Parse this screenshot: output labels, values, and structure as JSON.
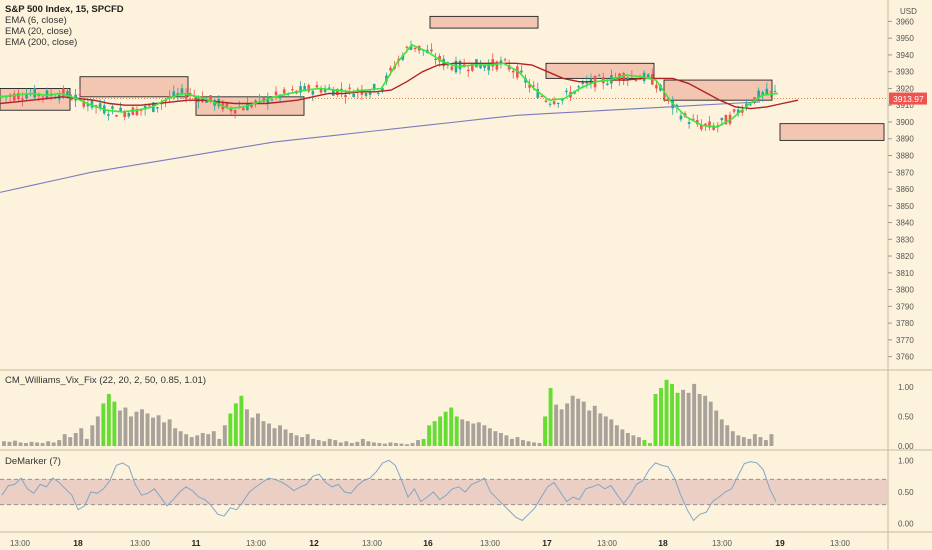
{
  "header": {
    "title": "S&P 500 Index, 15, SPCFD",
    "indicators": [
      "EMA (6, close)",
      "EMA (20, close)",
      "EMA (200, close)"
    ],
    "currency": "USD",
    "last_price": "3913.97"
  },
  "pane_vix": {
    "title": "CM_Williams_Vix_Fix (22, 20, 2, 50, 0.85, 1.01)",
    "ticks": [
      "1.00",
      "0.50",
      "0.00"
    ]
  },
  "pane_dem": {
    "title": "DeMarker (7)",
    "ticks": [
      "1.00",
      "0.50",
      "0.00"
    ]
  },
  "time_axis": [
    "13:00",
    "18",
    "13:00",
    "11",
    "13:00",
    "12",
    "13:00",
    "16",
    "13:00",
    "17",
    "13:00",
    "18",
    "13:00",
    "19",
    "13:00"
  ],
  "colors": {
    "background": "#fdf2dc",
    "candle_up": "#26a69a",
    "candle_down": "#ef5350",
    "ema_fast": "#38e838",
    "ema_mid": "#b22222",
    "ema_slow": "#7b7bbd",
    "vix_bar": "#a8a29a",
    "vix_spike": "#66dd33",
    "zone_fill": "#f3c6b2",
    "demarker_line": "#7fa7c9",
    "demarker_band": "#e8c9c0"
  },
  "chart_data": [
    {
      "type": "candlestick",
      "title": "S&P 500 Index, 15, SPCFD",
      "x": [
        "13:00",
        "18",
        "13:00",
        "11",
        "13:00",
        "12",
        "13:00",
        "16",
        "13:00",
        "17",
        "13:00",
        "18",
        "13:00",
        "19",
        "13:00"
      ],
      "y_ticks": [
        3760,
        3770,
        3780,
        3790,
        3800,
        3810,
        3820,
        3830,
        3840,
        3850,
        3860,
        3870,
        3880,
        3890,
        3900,
        3910,
        3920,
        3930,
        3940,
        3950,
        3960
      ],
      "ylim": [
        3755,
        3968
      ],
      "last_price": 3913.97,
      "ema6": [
        3915,
        3916,
        3917,
        3916,
        3917,
        3914,
        3910,
        3907,
        3906,
        3907,
        3909,
        3914,
        3917,
        3915,
        3912,
        3908,
        3909,
        3912,
        3915,
        3917,
        3919,
        3920,
        3919,
        3918,
        3919,
        3920,
        3935,
        3946,
        3942,
        3936,
        3933,
        3934,
        3934,
        3935,
        3930,
        3920,
        3913,
        3914,
        3920,
        3924,
        3925,
        3928,
        3927,
        3925,
        3912,
        3903,
        3898,
        3897,
        3902,
        3910,
        3916,
        3917
      ],
      "ema20": [
        3911,
        3912,
        3913,
        3914,
        3915,
        3914,
        3913,
        3911,
        3910,
        3910,
        3911,
        3912,
        3913,
        3913,
        3912,
        3911,
        3911,
        3911,
        3912,
        3913,
        3915,
        3917,
        3917,
        3918,
        3918,
        3919,
        3924,
        3930,
        3934,
        3935,
        3935,
        3935,
        3935,
        3935,
        3934,
        3930,
        3926,
        3924,
        3924,
        3925,
        3925,
        3926,
        3926,
        3926,
        3923,
        3918,
        3913,
        3909,
        3908,
        3909,
        3911,
        3913
      ],
      "ema200": [
        3858,
        3862,
        3866,
        3870,
        3873,
        3876,
        3879,
        3882,
        3885,
        3888,
        3890,
        3892,
        3894,
        3896,
        3898,
        3900,
        3902,
        3904,
        3905,
        3906,
        3907,
        3908,
        3909,
        3910,
        3911,
        3912
      ]
    },
    {
      "type": "bar",
      "title": "CM_Williams_Vix_Fix (22, 20, 2, 50, 0.85, 1.01)",
      "ylim": [
        0,
        1.15
      ],
      "y_ticks": [
        0,
        0.5,
        1
      ],
      "values": [
        0.08,
        0.07,
        0.09,
        0.06,
        0.05,
        0.07,
        0.06,
        0.05,
        0.08,
        0.06,
        0.1,
        0.2,
        0.15,
        0.22,
        0.3,
        0.12,
        0.35,
        0.5,
        0.72,
        0.88,
        0.75,
        0.6,
        0.65,
        0.5,
        0.58,
        0.62,
        0.55,
        0.48,
        0.52,
        0.4,
        0.45,
        0.3,
        0.25,
        0.2,
        0.15,
        0.18,
        0.22,
        0.2,
        0.25,
        0.12,
        0.35,
        0.55,
        0.72,
        0.85,
        0.62,
        0.48,
        0.55,
        0.42,
        0.38,
        0.3,
        0.35,
        0.28,
        0.22,
        0.18,
        0.15,
        0.2,
        0.12,
        0.1,
        0.08,
        0.12,
        0.1,
        0.06,
        0.08,
        0.05,
        0.07,
        0.12,
        0.08,
        0.06,
        0.05,
        0.04,
        0.06,
        0.05,
        0.04,
        0.03,
        0.05,
        0.1,
        0.12,
        0.35,
        0.42,
        0.5,
        0.58,
        0.65,
        0.5,
        0.45,
        0.42,
        0.38,
        0.4,
        0.35,
        0.3,
        0.25,
        0.22,
        0.18,
        0.12,
        0.15,
        0.1,
        0.08,
        0.06,
        0.05,
        0.5,
        0.98,
        0.7,
        0.62,
        0.72,
        0.85,
        0.8,
        0.75,
        0.6,
        0.68,
        0.55,
        0.5,
        0.45,
        0.35,
        0.28,
        0.22,
        0.18,
        0.15,
        0.1,
        0.05,
        0.88,
        0.98,
        1.12,
        1.05,
        0.9,
        0.95,
        0.9,
        1.05,
        0.88,
        0.85,
        0.75,
        0.6,
        0.45,
        0.35,
        0.25,
        0.18,
        0.15,
        0.12,
        0.2,
        0.15,
        0.1,
        0.2
      ],
      "highlighted": [
        18,
        19,
        20,
        41,
        42,
        43,
        76,
        77,
        78,
        79,
        80,
        81,
        82,
        98,
        99,
        116,
        117,
        118,
        119,
        120,
        121,
        122
      ]
    },
    {
      "type": "line",
      "title": "DeMarker (7)",
      "ylim": [
        -0.1,
        1.1
      ],
      "y_ticks": [
        0,
        0.5,
        1
      ],
      "band": [
        0.3,
        0.7
      ],
      "values": [
        0.45,
        0.6,
        0.62,
        0.72,
        0.55,
        0.48,
        0.62,
        0.58,
        0.72,
        0.65,
        0.55,
        0.45,
        0.22,
        0.28,
        0.5,
        0.48,
        0.55,
        0.68,
        0.92,
        0.96,
        0.9,
        0.62,
        0.45,
        0.48,
        0.55,
        0.42,
        0.28,
        0.38,
        0.5,
        0.58,
        0.52,
        0.42,
        0.38,
        0.28,
        0.15,
        0.12,
        0.25,
        0.22,
        0.35,
        0.5,
        0.58,
        0.65,
        0.72,
        0.7,
        0.66,
        0.6,
        0.52,
        0.58,
        0.62,
        0.75,
        0.78,
        0.65,
        0.58,
        0.62,
        0.5,
        0.48,
        0.6,
        0.68,
        0.72,
        0.82,
        0.96,
        1.0,
        0.92,
        0.68,
        0.42,
        0.55,
        0.35,
        0.42,
        0.5,
        0.38,
        0.45,
        0.55,
        0.58,
        0.5,
        0.62,
        0.66,
        0.72,
        0.5,
        0.4,
        0.3,
        0.2,
        0.1,
        0.05,
        0.15,
        0.25,
        0.42,
        0.58,
        0.65,
        0.5,
        0.35,
        0.42,
        0.38,
        0.55,
        0.58,
        0.62,
        0.55,
        0.6,
        0.45,
        0.32,
        0.45,
        0.62,
        0.68,
        0.85,
        0.96,
        0.92,
        0.9,
        0.72,
        0.45,
        0.22,
        0.05,
        0.15,
        0.18,
        0.35,
        0.42,
        0.5,
        0.55,
        0.75,
        0.95,
        0.98,
        0.96,
        0.85,
        0.55,
        0.35
      ]
    }
  ]
}
